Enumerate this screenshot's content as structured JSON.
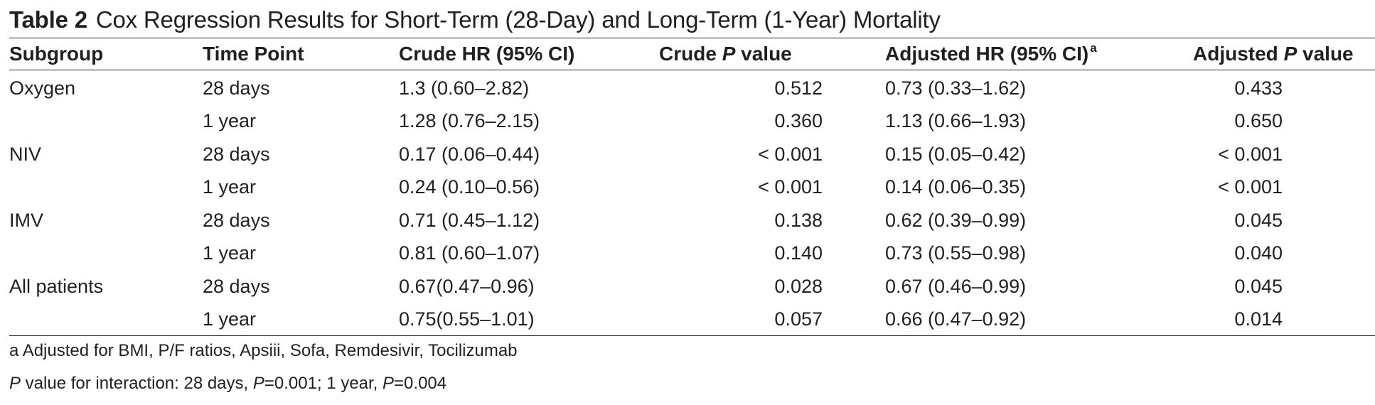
{
  "table": {
    "label": "Table 2",
    "title": "Cox Regression Results for Short-Term (28-Day) and Long-Term (1-Year) Mortality",
    "headers": {
      "subgroup": "Subgroup",
      "time_point": "Time Point",
      "crude_hr": "Crude HR (95% CI)",
      "crude_p_prefix": "Crude ",
      "crude_p_italic": "P",
      "crude_p_suffix": " value",
      "adjusted_hr": "Adjusted HR (95% CI)",
      "adjusted_hr_mark": "a",
      "adjusted_p_prefix": "Adjusted ",
      "adjusted_p_italic": "P",
      "adjusted_p_suffix": " value"
    },
    "rows": [
      {
        "subgroup": "Oxygen",
        "time_point": "28 days",
        "crude_hr": "1.3 (0.60–2.82)",
        "crude_p": "0.512",
        "adjusted_hr": "0.73 (0.33–1.62)",
        "adjusted_p": "0.433"
      },
      {
        "subgroup": "",
        "time_point": "1 year",
        "crude_hr": "1.28 (0.76–2.15)",
        "crude_p": "0.360",
        "adjusted_hr": "1.13 (0.66–1.93)",
        "adjusted_p": "0.650"
      },
      {
        "subgroup": "NIV",
        "time_point": "28 days",
        "crude_hr": "0.17 (0.06–0.44)",
        "crude_p": "< 0.001",
        "adjusted_hr": "0.15 (0.05–0.42)",
        "adjusted_p": "< 0.001"
      },
      {
        "subgroup": "",
        "time_point": "1 year",
        "crude_hr": "0.24 (0.10–0.56)",
        "crude_p": "< 0.001",
        "adjusted_hr": "0.14 (0.06–0.35)",
        "adjusted_p": "< 0.001"
      },
      {
        "subgroup": "IMV",
        "time_point": "28 days",
        "crude_hr": "0.71 (0.45–1.12)",
        "crude_p": "0.138",
        "adjusted_hr": "0.62 (0.39–0.99)",
        "adjusted_p": "0.045"
      },
      {
        "subgroup": "",
        "time_point": "1 year",
        "crude_hr": "0.81 (0.60–1.07)",
        "crude_p": "0.140",
        "adjusted_hr": "0.73 (0.55–0.98)",
        "adjusted_p": "0.040"
      },
      {
        "subgroup": "All patients",
        "time_point": "28 days",
        "crude_hr": "0.67(0.47–0.96)",
        "crude_p": "0.028",
        "adjusted_hr": "0.67 (0.46–0.99)",
        "adjusted_p": "0.045"
      },
      {
        "subgroup": "",
        "time_point": "1 year",
        "crude_hr": "0.75(0.55–1.01)",
        "crude_p": "0.057",
        "adjusted_hr": "0.66 (0.47–0.92)",
        "adjusted_p": "0.014"
      }
    ],
    "footnotes": {
      "adjusted": "a Adjusted for BMI, P/F ratios, Apsiii, Sofa, Remdesivir, Tocilizumab",
      "interaction": {
        "p1": "P",
        "t1": " value for interaction: 28 days, ",
        "p2": "P",
        "t2": "=0.001; 1 year, ",
        "p3": "P",
        "t3": "=0.004"
      }
    }
  }
}
